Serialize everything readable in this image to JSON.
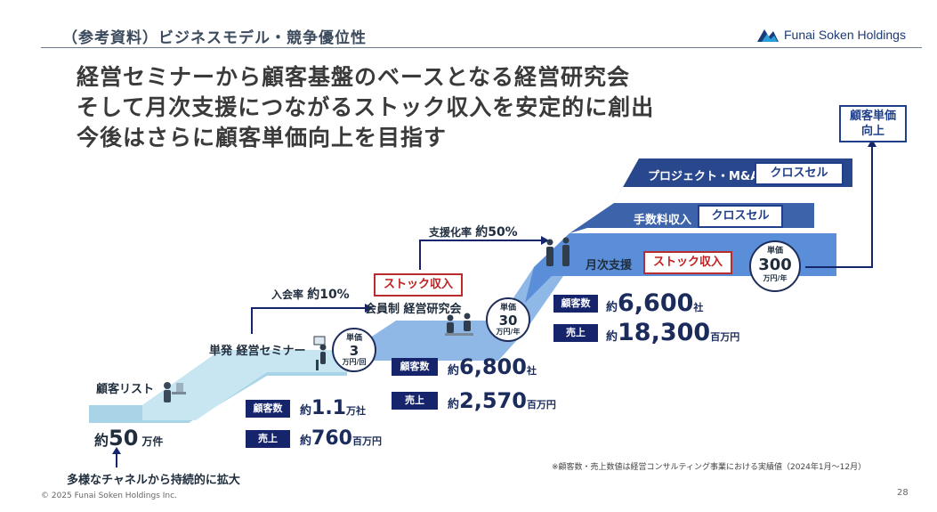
{
  "header": {
    "title": "（参考資料）ビジネスモデル・競争優位性",
    "logo_text": "Funai Soken Holdings"
  },
  "headline": {
    "line1": "経営セミナーから顧客基盤のベースとなる経営研究会",
    "line2": "そして月次支援につながるストック収入を安定的に創出",
    "line3": "今後はさらに顧客単価向上を目指す"
  },
  "steps": {
    "list_label": "顧客リスト",
    "seminar_label": "単発 経営セミナー",
    "society_label": "会員制 経営研究会",
    "monthly_label": "月次支援",
    "fee_label": "手数料収入",
    "project_label": "プロジェクト・M&A"
  },
  "tags": {
    "stock_1": "ストック収入",
    "stock_2": "ストック収入",
    "cross_1": "クロスセル",
    "cross_2": "クロスセル",
    "unit_price_up": "顧客単価\n向上"
  },
  "rates": {
    "join_prefix": "入会率",
    "join_value": "約10%",
    "support_prefix": "支援化率",
    "support_value": "約50%"
  },
  "circles": {
    "seminar": {
      "top": "単価",
      "value": "3",
      "unit": "万円/回"
    },
    "society": {
      "top": "単価",
      "value": "30",
      "unit": "万円/年"
    },
    "monthly": {
      "top": "単価",
      "value": "300",
      "unit": "万円/年"
    }
  },
  "metrics": {
    "badge_customers": "顧客数",
    "badge_sales": "売上",
    "seminar_customers": {
      "prefix": "約",
      "num": "1.1",
      "suffix": "万社"
    },
    "seminar_sales": {
      "prefix": "約",
      "num": "760",
      "suffix": "百万円"
    },
    "society_customers": {
      "prefix": "約",
      "num": "6,800",
      "suffix": "社"
    },
    "society_sales": {
      "prefix": "約",
      "num": "2,570",
      "suffix": "百万円"
    },
    "monthly_customers": {
      "prefix": "約",
      "num": "6,600",
      "suffix": "社"
    },
    "monthly_sales": {
      "prefix": "約",
      "num": "18,300",
      "suffix": "百万円"
    }
  },
  "list_count": {
    "prefix": "約",
    "num": "50",
    "suffix": "万件"
  },
  "expand_note": "多様なチャネルから持続的に拡大",
  "footnote": "※顧客数・売上数値は経営コンサルティング事業における実績値（2024年1月〜12月）",
  "copyright": "© 2025 Funai Soken Holdings Inc.",
  "page_number": "28",
  "colors": {
    "navy": "#16246b",
    "step_light": "#a9d4e8",
    "step_mid": "#8fb8e6",
    "step_blue": "#5b8ed8",
    "step_dark1": "#3d63aa",
    "step_dark2": "#29478c",
    "accent_red": "#c02020"
  }
}
